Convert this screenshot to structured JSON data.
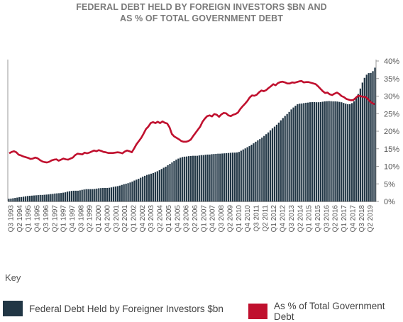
{
  "title_line1": "FEDERAL DEBT HELD BY FOREIGN INVESTORS $BN AND",
  "title_line2": "AS % OF TOTAL GOVERNMENT DEBT",
  "key_label": "Key",
  "colors": {
    "bars": "#213645",
    "line": "#c0102e",
    "axis": "#9a9a9a",
    "tick": "#555555"
  },
  "chart_data": {
    "type": "bar+line",
    "title": "FEDERAL DEBT HELD BY FOREIGN INVESTORS $BN AND AS % OF TOTAL GOVERNMENT DEBT",
    "xlabel": "",
    "ylabel": "",
    "y2lim": [
      0,
      40
    ],
    "y2_ticks": [
      "0%",
      "5%",
      "10%",
      "15%",
      "20%",
      "25%",
      "30%",
      "35%",
      "40%"
    ],
    "x_tick_labels": [
      "Q3 1993",
      "Q2 1994",
      "Q1 1995",
      "Q4 1995",
      "Q3 1996",
      "Q2 1997",
      "Q1 1997",
      "Q4 1997",
      "Q3 1998",
      "Q2 1999",
      "Q1 2000",
      "Q4 2000",
      "Q3 2001",
      "Q2 2001",
      "Q1 2002",
      "Q4 2002",
      "Q3 2003",
      "Q2 2004",
      "Q1 2005",
      "Q4 2005",
      "Q3 2006",
      "Q2 2006",
      "Q1 2007",
      "Q4 2007",
      "Q3 2008",
      "Q2 2009",
      "Q1 2010",
      "Q4 2010",
      "Q3 2011",
      "Q2 2011",
      "Q1 2012",
      "Q4 2012",
      "Q3 2013",
      "Q2 2014",
      "Q1 2015",
      "Q4 2015",
      "Q3 2016",
      "Q2 2016",
      "Q1 2017",
      "Q4 2017",
      "Q3 2018",
      "Q2 2019"
    ],
    "grid": false,
    "legend_position": "bottom",
    "series": [
      {
        "name": "Federal Debt Held by Foreigner Investors $bn",
        "type": "bar",
        "axis": "left-unlabeled",
        "values": [
          1.5,
          1.6,
          1.8,
          2,
          2.2,
          2.4,
          2.5,
          2.7,
          2.9,
          3.1,
          3.2,
          3.3,
          3.4,
          3.5,
          3.6,
          3.7,
          3.7,
          3.8,
          3.9,
          4,
          4.2,
          4.3,
          4.5,
          4.6,
          4.7,
          4.8,
          5,
          5.2,
          5.6,
          5.8,
          6,
          6.1,
          6.1,
          6.1,
          6.3,
          6.6,
          6.8,
          7,
          7,
          7,
          7,
          7.1,
          7.3,
          7.5,
          7.6,
          7.7,
          7.7,
          7.7,
          7.8,
          8,
          8.3,
          8.5,
          8.7,
          9,
          9.4,
          9.8,
          10.1,
          10.4,
          10.8,
          11.3,
          11.9,
          12.4,
          12.9,
          13.5,
          14.1,
          14.6,
          15.1,
          15.4,
          15.8,
          16.2,
          16.7,
          17.2,
          17.8,
          18.5,
          19.2,
          19.8,
          20.6,
          21.4,
          22.2,
          23,
          23.8,
          24.4,
          24.9,
          25.3,
          25.5,
          25.6,
          25.8,
          25.9,
          26,
          26,
          26,
          26.2,
          26.4,
          26.4,
          26.6,
          26.7,
          26.7,
          26.9,
          27,
          27.1,
          27.2,
          27.2,
          27.3,
          27.4,
          27.5,
          27.6,
          27.7,
          27.8,
          27.8,
          27.9,
          28.2,
          28.9,
          29.6,
          30.2,
          30.9,
          31.5,
          32.3,
          33.1,
          34,
          34.8,
          35.5,
          36.4,
          37.3,
          38.3,
          39.3,
          40.5,
          41.6,
          42.6,
          43.7,
          44.9,
          46.2,
          47.5,
          48.7,
          49.8,
          51,
          52.4,
          53.5,
          54.5,
          55.4,
          55.7,
          55.8,
          56,
          56.2,
          56.3,
          56.5,
          56.6,
          56.6,
          56.5,
          56.5,
          56.6,
          56.8,
          57,
          57.1,
          57.2,
          57.1,
          57,
          57,
          56.9,
          56.7,
          56.5,
          56.1,
          55.7,
          55.4,
          55.4,
          56,
          57.1,
          58.8,
          61.2,
          64.3,
          67.7,
          70.4,
          72.2,
          73.1,
          73.2,
          74.2,
          76.2
        ]
      },
      {
        "name": "As % of Total Government Debt",
        "type": "line",
        "axis": "right",
        "values": [
          13.7,
          14.1,
          14.3,
          14,
          13.3,
          13.1,
          12.8,
          12.6,
          12.4,
          12.1,
          12.2,
          12.5,
          12.3,
          11.8,
          11.4,
          11.2,
          11.1,
          11.3,
          11.7,
          11.9,
          12,
          11.6,
          11.9,
          12.2,
          12,
          11.9,
          12.2,
          12.5,
          13.2,
          13.6,
          13.5,
          13.4,
          13.9,
          13.7,
          13.9,
          14.2,
          14.5,
          14.3,
          14.6,
          14.4,
          14.1,
          14,
          13.8,
          13.8,
          13.8,
          13.9,
          14,
          13.9,
          13.7,
          14.2,
          14.5,
          14.3,
          14,
          15.1,
          16.3,
          17.2,
          18.1,
          19.3,
          20.6,
          21.3,
          22.3,
          22.6,
          22.3,
          22.7,
          22.3,
          22.8,
          22.4,
          22.2,
          21.1,
          19.2,
          18.5,
          18.1,
          17.7,
          17.2,
          17,
          17,
          17.2,
          17.6,
          18.6,
          19.5,
          20.4,
          21.3,
          22.7,
          23.6,
          24.3,
          24.5,
          24.2,
          24.9,
          24.7,
          24.1,
          24.8,
          25.2,
          25.1,
          24.5,
          24.3,
          24.7,
          24.9,
          25.3,
          26.3,
          27.1,
          27.8,
          28.6,
          29.6,
          30.2,
          30.1,
          30.4,
          31.1,
          31.6,
          31.4,
          31.7,
          32.3,
          32.8,
          33.4,
          33.1,
          33.7,
          34,
          34.1,
          33.9,
          33.6,
          33.6,
          33.9,
          33.8,
          34,
          34.2,
          34.3,
          33.9,
          34,
          34,
          33.8,
          33.6,
          33.4,
          32.8,
          32.1,
          31.4,
          30.9,
          31,
          30.5,
          30.3,
          30.7,
          31,
          30.6,
          30,
          29.7,
          29.2,
          29,
          28.8,
          28.9,
          29.5,
          30.1,
          30,
          29.8,
          29.8,
          29.3,
          28.5,
          28,
          27.7
        ]
      }
    ]
  },
  "legend": [
    {
      "label": "Federal Debt Held by Foreigner Investors $bn",
      "color": "#213645"
    },
    {
      "label": "As % of Total Government Debt",
      "color": "#c0102e"
    }
  ]
}
